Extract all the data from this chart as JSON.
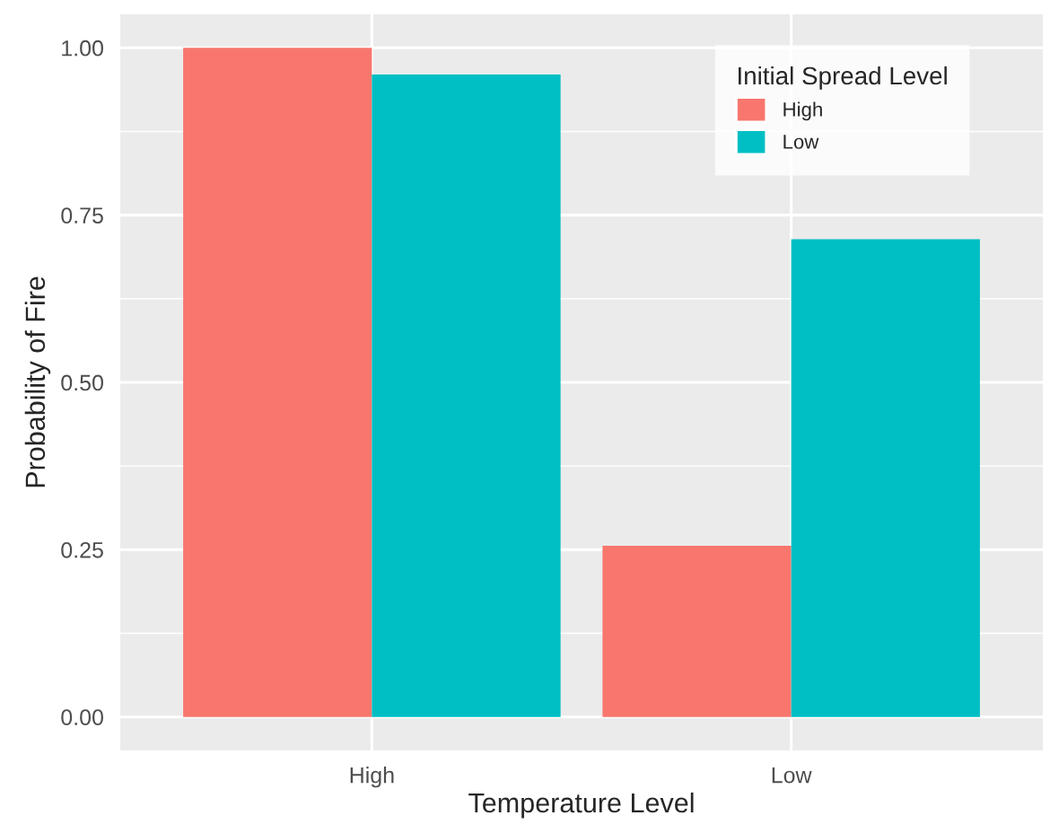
{
  "chart_data": {
    "type": "bar",
    "xlabel": "Temperature Level",
    "ylabel": "Probability of Fire",
    "legend_title": "Initial Spread Level",
    "categories": [
      "High",
      "Low"
    ],
    "series": [
      {
        "name": "High",
        "color": "#f8766d",
        "values": [
          1.0,
          0.256
        ]
      },
      {
        "name": "Low",
        "color": "#00bfc4",
        "values": [
          0.96,
          0.714
        ]
      }
    ],
    "ylim": [
      -0.05,
      1.05
    ],
    "yticks": [
      {
        "value": 0,
        "label": "0.00"
      },
      {
        "value": 0.25,
        "label": "0.25"
      },
      {
        "value": 0.5,
        "label": "0.50"
      },
      {
        "value": 0.75,
        "label": "0.75"
      },
      {
        "value": 1,
        "label": "1.00"
      }
    ],
    "grid": true,
    "legend": "top right"
  }
}
